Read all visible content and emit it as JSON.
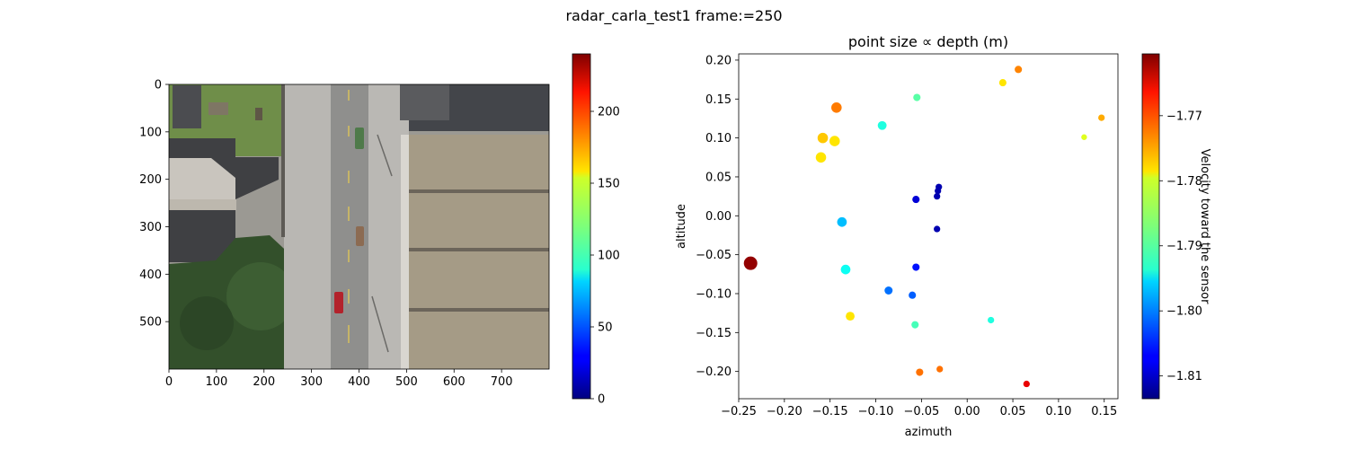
{
  "figure": {
    "suptitle": "radar_carla_test1 frame:=250"
  },
  "colors": {
    "road": "#8f8f8d",
    "sidewalk": "#b9b7b3",
    "grass": "#6f8e49",
    "trees": "#33502b",
    "roof_dark": "#3f4043",
    "roof_light": "#c9c5be",
    "warehouse_roof": "#a59b86",
    "lane_marking": "#d7c05b"
  },
  "chart_data": [
    {
      "type": "image",
      "xticks": [
        0,
        100,
        200,
        300,
        400,
        500,
        600,
        700
      ],
      "yticks": [
        0,
        100,
        200,
        300,
        400,
        500
      ],
      "xlim": [
        0,
        800
      ],
      "ylim": [
        600,
        0
      ],
      "colorbar": {
        "colormap": "jet",
        "range": [
          0,
          240
        ],
        "ticks": [
          0,
          50,
          100,
          150,
          200
        ],
        "label": ""
      }
    },
    {
      "type": "scatter",
      "title": "point size ∝ depth (m)",
      "xlabel": "azimuth",
      "ylabel": "altitude",
      "xlim": [
        -0.25,
        0.165
      ],
      "ylim": [
        -0.235,
        0.208
      ],
      "xticks": [
        -0.25,
        -0.2,
        -0.15,
        -0.1,
        -0.05,
        0.0,
        0.05,
        0.1,
        0.15
      ],
      "yticks": [
        0.2,
        0.15,
        0.1,
        0.05,
        0.0,
        -0.05,
        -0.1,
        -0.15,
        -0.2
      ],
      "colorbar": {
        "colormap": "jet",
        "range": [
          -1.8135,
          -1.7605
        ],
        "ticks": [
          -1.77,
          -1.78,
          -1.79,
          -1.8,
          -1.81
        ],
        "label": "Velocity toward the sensor"
      },
      "points": [
        {
          "x": -0.237,
          "y": -0.061,
          "velocity": -1.7615,
          "depth": 14
        },
        {
          "x": -0.143,
          "y": 0.139,
          "velocity": -1.7735,
          "depth": 10
        },
        {
          "x": -0.158,
          "y": 0.1,
          "velocity": -1.7775,
          "depth": 10
        },
        {
          "x": -0.145,
          "y": 0.096,
          "velocity": -1.779,
          "depth": 10
        },
        {
          "x": -0.16,
          "y": 0.075,
          "velocity": -1.779,
          "depth": 10
        },
        {
          "x": -0.137,
          "y": -0.008,
          "velocity": -1.797,
          "depth": 9
        },
        {
          "x": -0.133,
          "y": -0.069,
          "velocity": -1.793,
          "depth": 9
        },
        {
          "x": -0.128,
          "y": -0.129,
          "velocity": -1.779,
          "depth": 8
        },
        {
          "x": -0.093,
          "y": 0.116,
          "velocity": -1.792,
          "depth": 8
        },
        {
          "x": -0.086,
          "y": -0.096,
          "velocity": -1.801,
          "depth": 7
        },
        {
          "x": -0.06,
          "y": -0.102,
          "velocity": -1.802,
          "depth": 6
        },
        {
          "x": -0.055,
          "y": 0.152,
          "velocity": -1.789,
          "depth": 6
        },
        {
          "x": -0.057,
          "y": -0.14,
          "velocity": -1.79,
          "depth": 6
        },
        {
          "x": -0.056,
          "y": 0.021,
          "velocity": -1.809,
          "depth": 6
        },
        {
          "x": -0.056,
          "y": -0.066,
          "velocity": -1.806,
          "depth": 6
        },
        {
          "x": -0.052,
          "y": -0.201,
          "velocity": -1.773,
          "depth": 6
        },
        {
          "x": -0.033,
          "y": -0.017,
          "velocity": -1.811,
          "depth": 5
        },
        {
          "x": -0.033,
          "y": 0.025,
          "velocity": -1.811,
          "depth": 5
        },
        {
          "x": -0.032,
          "y": 0.032,
          "velocity": -1.811,
          "depth": 5
        },
        {
          "x": -0.031,
          "y": 0.037,
          "velocity": -1.811,
          "depth": 5
        },
        {
          "x": -0.03,
          "y": -0.197,
          "velocity": -1.773,
          "depth": 5
        },
        {
          "x": 0.026,
          "y": -0.134,
          "velocity": -1.792,
          "depth": 5
        },
        {
          "x": 0.039,
          "y": 0.171,
          "velocity": -1.779,
          "depth": 6
        },
        {
          "x": 0.056,
          "y": 0.188,
          "velocity": -1.774,
          "depth": 6
        },
        {
          "x": 0.065,
          "y": -0.216,
          "velocity": -1.766,
          "depth": 5
        },
        {
          "x": 0.128,
          "y": 0.101,
          "velocity": -1.782,
          "depth": 4
        },
        {
          "x": 0.147,
          "y": 0.126,
          "velocity": -1.776,
          "depth": 5
        }
      ]
    }
  ]
}
